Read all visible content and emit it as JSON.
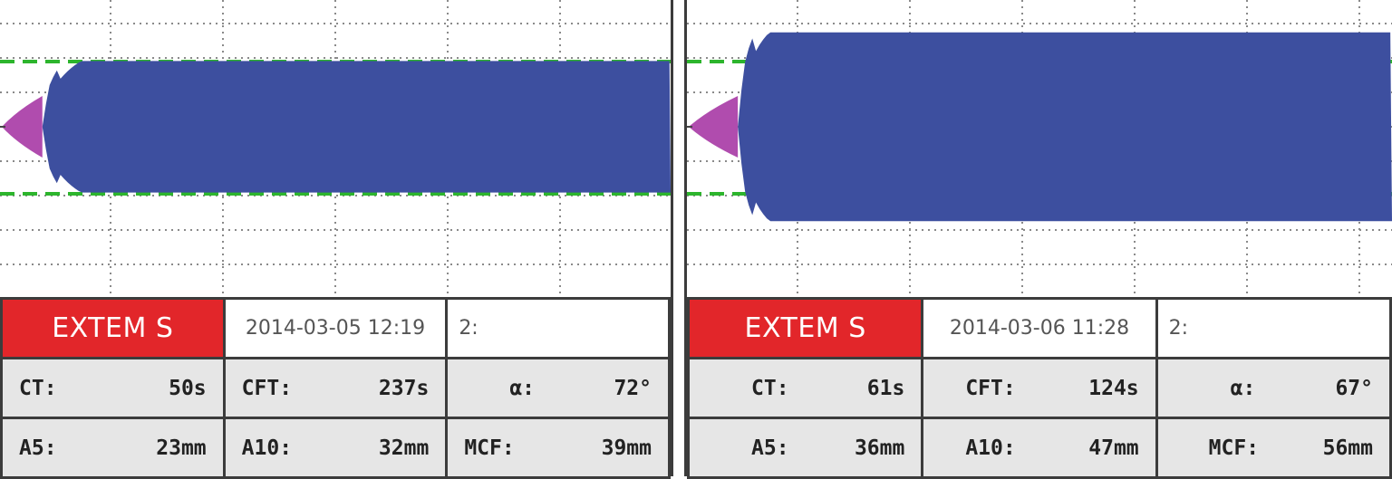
{
  "panels": [
    {
      "test_name": "EXTEM S",
      "datetime": "2014-03-05  12:19",
      "channel": "2:",
      "params": [
        [
          {
            "label": "CT:",
            "value": "50s"
          },
          {
            "label": "CFT:",
            "value": "237s"
          },
          {
            "label": "α:",
            "value": "72°"
          }
        ],
        [
          {
            "label": "A5:",
            "value": "23mm"
          },
          {
            "label": "A10:",
            "value": "32mm"
          },
          {
            "label": "MCF:",
            "value": "39mm"
          }
        ]
      ]
    },
    {
      "test_name": "EXTEM S",
      "datetime": "2014-03-06  11:28",
      "channel": "2:",
      "params": [
        [
          {
            "label": "CT:",
            "value": "61s"
          },
          {
            "label": "CFT:",
            "value": "124s"
          },
          {
            "label": "α:",
            "value": "67°"
          }
        ],
        [
          {
            "label": "A5:",
            "value": "36mm"
          },
          {
            "label": "A10:",
            "value": "47mm"
          },
          {
            "label": "MCF:",
            "value": "56mm"
          }
        ]
      ]
    }
  ],
  "chart_data": [
    {
      "type": "area",
      "series": [
        {
          "ct_s": 50,
          "cft_s": 237,
          "alpha_deg": 72,
          "a5_mm": 23,
          "a10_mm": 32,
          "mcf_mm": 39
        }
      ],
      "reference_band_mm": 40,
      "grid": true,
      "colors": {
        "amplitude": "#3d4f9f",
        "clotting_time": "#b04cae",
        "reference": "#2db52d",
        "grid": "#8a8a8a"
      }
    },
    {
      "type": "area",
      "series": [
        {
          "ct_s": 61,
          "cft_s": 124,
          "alpha_deg": 67,
          "a5_mm": 36,
          "a10_mm": 47,
          "mcf_mm": 56
        }
      ],
      "reference_band_mm": 40,
      "grid": true,
      "colors": {
        "amplitude": "#3d4f9f",
        "clotting_time": "#b04cae",
        "reference": "#2db52d",
        "grid": "#8a8a8a"
      }
    }
  ]
}
